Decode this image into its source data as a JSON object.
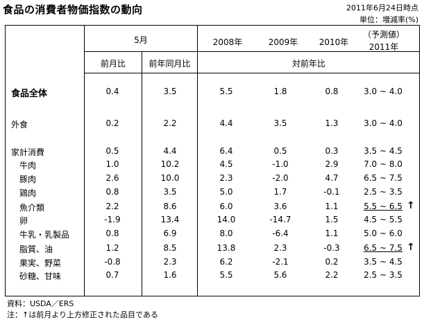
{
  "title": "食品の消費者物価指数の動向",
  "as_of": "2011年6月24日時点",
  "unit": "単位：増減率(%)",
  "header": {
    "may": "5月",
    "y2008": "2008年",
    "y2009": "2009年",
    "y2010": "2010年",
    "forecast_line1": "（予測値）",
    "forecast_line2": "2011年",
    "prev_month": "前月比",
    "prev_year_month": "前年同月比",
    "yoy": "対前年比"
  },
  "rows": [
    {
      "label": "食品全体",
      "bold": true,
      "values": [
        "0.4",
        "3.5",
        "5.5",
        "1.8",
        "0.8",
        "3.0 ~ 4.0"
      ],
      "revised": false
    },
    {
      "label": "外食",
      "bold": false,
      "values": [
        "0.2",
        "2.2",
        "4.4",
        "3.5",
        "1.3",
        "3.0 ~ 4.0"
      ],
      "revised": false
    },
    {
      "label": "家計消費",
      "bold": false,
      "values": [
        "0.5",
        "4.4",
        "6.4",
        "0.5",
        "0.3",
        "3.5 ~ 4.5"
      ],
      "revised": false
    },
    {
      "label": "牛肉",
      "bold": false,
      "values": [
        "1.0",
        "10.2",
        "4.5",
        "-1.0",
        "2.9",
        "7.0 ~ 8.0"
      ],
      "revised": false
    },
    {
      "label": "豚肉",
      "bold": false,
      "values": [
        "2.6",
        "10.0",
        "2.3",
        "-2.0",
        "4.7",
        "6.5 ~ 7.5"
      ],
      "revised": false
    },
    {
      "label": "鶏肉",
      "bold": false,
      "values": [
        "0.8",
        "3.5",
        "5.0",
        "1.7",
        "-0.1",
        "2.5 ~ 3.5"
      ],
      "revised": false
    },
    {
      "label": "魚介類",
      "bold": false,
      "values": [
        "2.2",
        "8.6",
        "6.0",
        "3.6",
        "1.1",
        "5.5 ~ 6.5"
      ],
      "revised": true
    },
    {
      "label": "卵",
      "bold": false,
      "values": [
        "-1.9",
        "13.4",
        "14.0",
        "-14.7",
        "1.5",
        "4.5 ~ 5.5"
      ],
      "revised": false
    },
    {
      "label": "牛乳・乳製品",
      "bold": false,
      "values": [
        "0.8",
        "6.9",
        "8.0",
        "-6.4",
        "1.1",
        "5.0 ~ 6.0"
      ],
      "revised": false
    },
    {
      "label": "脂質、油",
      "bold": false,
      "values": [
        "1.2",
        "8.5",
        "13.8",
        "2.3",
        "-0.3",
        "6.5 ~ 7.5"
      ],
      "revised": true
    },
    {
      "label": "果実、野菜",
      "bold": false,
      "values": [
        "-0.8",
        "2.3",
        "6.2",
        "-2.1",
        "0.2",
        "3.5 ~ 4.5"
      ],
      "revised": false
    },
    {
      "label": "砂糖、甘味",
      "bold": false,
      "values": [
        "0.7",
        "1.6",
        "5.5",
        "5.6",
        "2.2",
        "2.5 ~ 3.5"
      ],
      "revised": false
    }
  ],
  "arrow_symbol": "↑",
  "footer": {
    "source": "資料：USDA／ERS",
    "note": "注：↑は前月より上方修正された品目である"
  }
}
